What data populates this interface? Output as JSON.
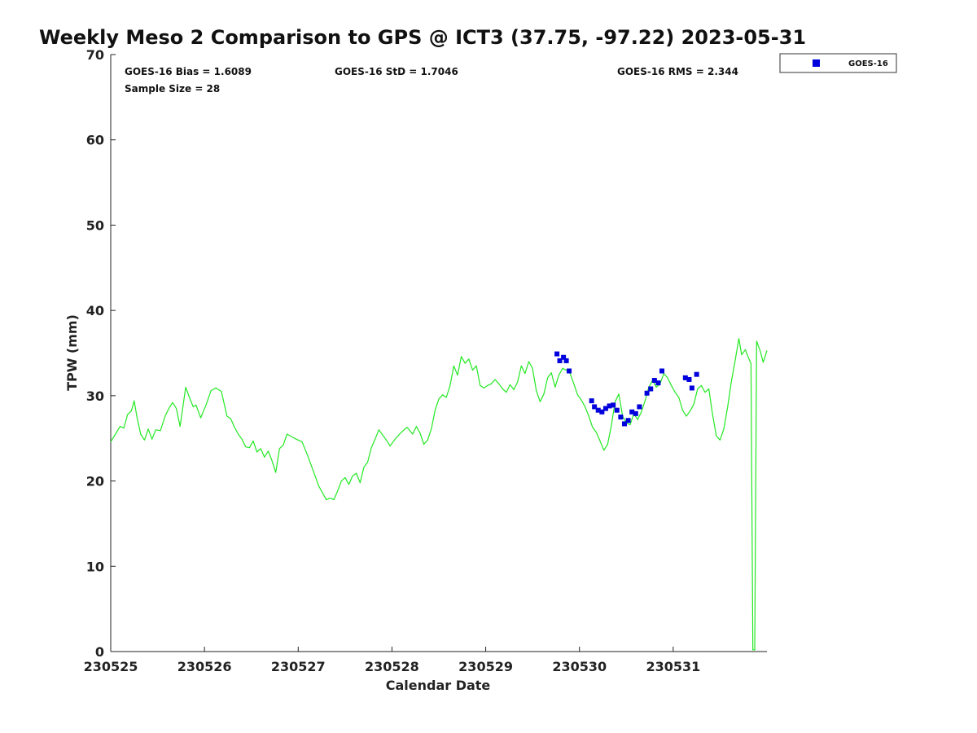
{
  "chart_data": {
    "type": "scatter",
    "title": "Weekly Meso 2 Comparison to GPS @ ICT3 (37.75, -97.22) 2023-05-31",
    "xlabel": "Calendar Date",
    "ylabel": "TPW (mm)",
    "xlim": [
      0,
      7
    ],
    "ylim": [
      0,
      70
    ],
    "xticks": [
      0,
      1,
      2,
      3,
      4,
      5,
      6
    ],
    "xtick_labels": [
      "230525",
      "230526",
      "230527",
      "230528",
      "230529",
      "230530",
      "230531"
    ],
    "yticks": [
      0,
      10,
      20,
      30,
      40,
      50,
      60,
      70
    ],
    "ytick_labels": [
      "0",
      "10",
      "20",
      "30",
      "40",
      "50",
      "60",
      "70"
    ],
    "legend_position": "top-right, outside the axes",
    "annotations": {
      "bias": "GOES-16 Bias = 1.6089",
      "std": "GOES-16 StD = 1.7046",
      "rms": "GOES-16 RMS = 2.344",
      "sample": "Sample Size = 28"
    },
    "series": [
      {
        "name": "GOES-16",
        "type": "scatter",
        "marker": "square",
        "color": "#0000dd",
        "points": [
          [
            4.76,
            34.9
          ],
          [
            4.79,
            34.1
          ],
          [
            4.83,
            34.5
          ],
          [
            4.86,
            34.1
          ],
          [
            4.89,
            32.9
          ],
          [
            5.13,
            29.4
          ],
          [
            5.16,
            28.7
          ],
          [
            5.2,
            28.3
          ],
          [
            5.24,
            28.1
          ],
          [
            5.28,
            28.5
          ],
          [
            5.32,
            28.8
          ],
          [
            5.36,
            28.9
          ],
          [
            5.4,
            28.3
          ],
          [
            5.44,
            27.5
          ],
          [
            5.48,
            26.7
          ],
          [
            5.52,
            27.1
          ],
          [
            5.56,
            28.1
          ],
          [
            5.6,
            27.9
          ],
          [
            5.64,
            28.7
          ],
          [
            5.72,
            30.3
          ],
          [
            5.76,
            30.8
          ],
          [
            5.8,
            31.8
          ],
          [
            5.84,
            31.5
          ],
          [
            5.88,
            32.9
          ],
          [
            6.13,
            32.1
          ],
          [
            6.17,
            31.9
          ],
          [
            6.2,
            30.9
          ],
          [
            6.25,
            32.5
          ]
        ]
      },
      {
        "type": "line",
        "color": "#22e822",
        "points": [
          [
            0,
            24.6
          ],
          [
            0.05,
            25.5
          ],
          [
            0.1,
            26.4
          ],
          [
            0.14,
            26.2
          ],
          [
            0.18,
            27.8
          ],
          [
            0.22,
            28.2
          ],
          [
            0.25,
            29.4
          ],
          [
            0.28,
            27.5
          ],
          [
            0.32,
            25.5
          ],
          [
            0.36,
            24.8
          ],
          [
            0.4,
            26.1
          ],
          [
            0.44,
            24.9
          ],
          [
            0.48,
            26.0
          ],
          [
            0.53,
            25.9
          ],
          [
            0.58,
            27.6
          ],
          [
            0.62,
            28.5
          ],
          [
            0.66,
            29.2
          ],
          [
            0.7,
            28.5
          ],
          [
            0.74,
            26.4
          ],
          [
            0.8,
            31.0
          ],
          [
            0.84,
            29.8
          ],
          [
            0.88,
            28.7
          ],
          [
            0.91,
            28.9
          ],
          [
            0.96,
            27.4
          ],
          [
            1.02,
            29.0
          ],
          [
            1.07,
            30.6
          ],
          [
            1.12,
            30.9
          ],
          [
            1.18,
            30.5
          ],
          [
            1.24,
            27.6
          ],
          [
            1.28,
            27.3
          ],
          [
            1.32,
            26.3
          ],
          [
            1.36,
            25.5
          ],
          [
            1.4,
            24.9
          ],
          [
            1.44,
            24.0
          ],
          [
            1.48,
            23.9
          ],
          [
            1.52,
            24.7
          ],
          [
            1.56,
            23.4
          ],
          [
            1.6,
            23.8
          ],
          [
            1.64,
            22.8
          ],
          [
            1.68,
            23.5
          ],
          [
            1.72,
            22.4
          ],
          [
            1.76,
            21.0
          ],
          [
            1.8,
            23.8
          ],
          [
            1.84,
            24.2
          ],
          [
            1.88,
            25.5
          ],
          [
            1.93,
            25.2
          ],
          [
            1.98,
            24.9
          ],
          [
            2.04,
            24.6
          ],
          [
            2.1,
            23.0
          ],
          [
            2.14,
            21.8
          ],
          [
            2.18,
            20.6
          ],
          [
            2.22,
            19.4
          ],
          [
            2.26,
            18.6
          ],
          [
            2.3,
            17.8
          ],
          [
            2.34,
            18.0
          ],
          [
            2.38,
            17.8
          ],
          [
            2.42,
            18.8
          ],
          [
            2.46,
            20.0
          ],
          [
            2.5,
            20.4
          ],
          [
            2.54,
            19.6
          ],
          [
            2.58,
            20.6
          ],
          [
            2.62,
            20.9
          ],
          [
            2.66,
            19.8
          ],
          [
            2.7,
            21.6
          ],
          [
            2.74,
            22.2
          ],
          [
            2.78,
            23.9
          ],
          [
            2.82,
            24.9
          ],
          [
            2.86,
            26.0
          ],
          [
            2.9,
            25.4
          ],
          [
            2.94,
            24.8
          ],
          [
            2.98,
            24.1
          ],
          [
            3.04,
            25.0
          ],
          [
            3.1,
            25.7
          ],
          [
            3.16,
            26.3
          ],
          [
            3.22,
            25.5
          ],
          [
            3.26,
            26.4
          ],
          [
            3.3,
            25.6
          ],
          [
            3.34,
            24.3
          ],
          [
            3.38,
            24.8
          ],
          [
            3.42,
            26.1
          ],
          [
            3.46,
            28.3
          ],
          [
            3.5,
            29.6
          ],
          [
            3.54,
            30.1
          ],
          [
            3.58,
            29.8
          ],
          [
            3.62,
            31.2
          ],
          [
            3.66,
            33.5
          ],
          [
            3.7,
            32.4
          ],
          [
            3.74,
            34.6
          ],
          [
            3.78,
            33.8
          ],
          [
            3.82,
            34.3
          ],
          [
            3.86,
            33.0
          ],
          [
            3.9,
            33.5
          ],
          [
            3.94,
            31.2
          ],
          [
            3.98,
            30.9
          ],
          [
            4.02,
            31.2
          ],
          [
            4.06,
            31.4
          ],
          [
            4.1,
            31.9
          ],
          [
            4.14,
            31.4
          ],
          [
            4.18,
            30.8
          ],
          [
            4.22,
            30.4
          ],
          [
            4.26,
            31.3
          ],
          [
            4.3,
            30.7
          ],
          [
            4.34,
            31.6
          ],
          [
            4.38,
            33.5
          ],
          [
            4.42,
            32.6
          ],
          [
            4.46,
            34.0
          ],
          [
            4.5,
            33.2
          ],
          [
            4.54,
            30.6
          ],
          [
            4.58,
            29.3
          ],
          [
            4.62,
            30.2
          ],
          [
            4.66,
            32.1
          ],
          [
            4.7,
            32.7
          ],
          [
            4.74,
            31.0
          ],
          [
            4.78,
            32.4
          ],
          [
            4.82,
            33.2
          ],
          [
            4.86,
            33.0
          ],
          [
            4.9,
            32.6
          ],
          [
            4.94,
            31.4
          ],
          [
            4.98,
            30.1
          ],
          [
            5.02,
            29.5
          ],
          [
            5.06,
            28.7
          ],
          [
            5.1,
            27.6
          ],
          [
            5.14,
            26.3
          ],
          [
            5.18,
            25.7
          ],
          [
            5.22,
            24.7
          ],
          [
            5.26,
            23.6
          ],
          [
            5.3,
            24.3
          ],
          [
            5.34,
            26.5
          ],
          [
            5.38,
            29.3
          ],
          [
            5.42,
            30.2
          ],
          [
            5.46,
            27.6
          ],
          [
            5.5,
            26.8
          ],
          [
            5.54,
            26.6
          ],
          [
            5.58,
            27.9
          ],
          [
            5.62,
            27.2
          ],
          [
            5.66,
            28.1
          ],
          [
            5.7,
            29.4
          ],
          [
            5.74,
            31.0
          ],
          [
            5.78,
            31.8
          ],
          [
            5.82,
            31.0
          ],
          [
            5.86,
            31.4
          ],
          [
            5.9,
            32.6
          ],
          [
            5.94,
            32.1
          ],
          [
            5.98,
            31.2
          ],
          [
            6.02,
            30.4
          ],
          [
            6.06,
            29.8
          ],
          [
            6.1,
            28.3
          ],
          [
            6.14,
            27.6
          ],
          [
            6.18,
            28.2
          ],
          [
            6.22,
            29.0
          ],
          [
            6.26,
            30.8
          ],
          [
            6.3,
            31.2
          ],
          [
            6.34,
            30.4
          ],
          [
            6.38,
            30.8
          ],
          [
            6.42,
            27.8
          ],
          [
            6.46,
            25.3
          ],
          [
            6.5,
            24.8
          ],
          [
            6.54,
            26.1
          ],
          [
            6.58,
            28.6
          ],
          [
            6.62,
            31.6
          ],
          [
            6.66,
            34.1
          ],
          [
            6.7,
            36.7
          ],
          [
            6.73,
            34.8
          ],
          [
            6.77,
            35.4
          ],
          [
            6.8,
            34.5
          ],
          [
            6.83,
            33.8
          ],
          [
            6.85,
            0.2
          ],
          [
            6.87,
            0.2
          ],
          [
            6.89,
            36.4
          ],
          [
            6.93,
            35.2
          ],
          [
            6.96,
            33.9
          ],
          [
            7.0,
            35.3
          ]
        ]
      }
    ]
  }
}
